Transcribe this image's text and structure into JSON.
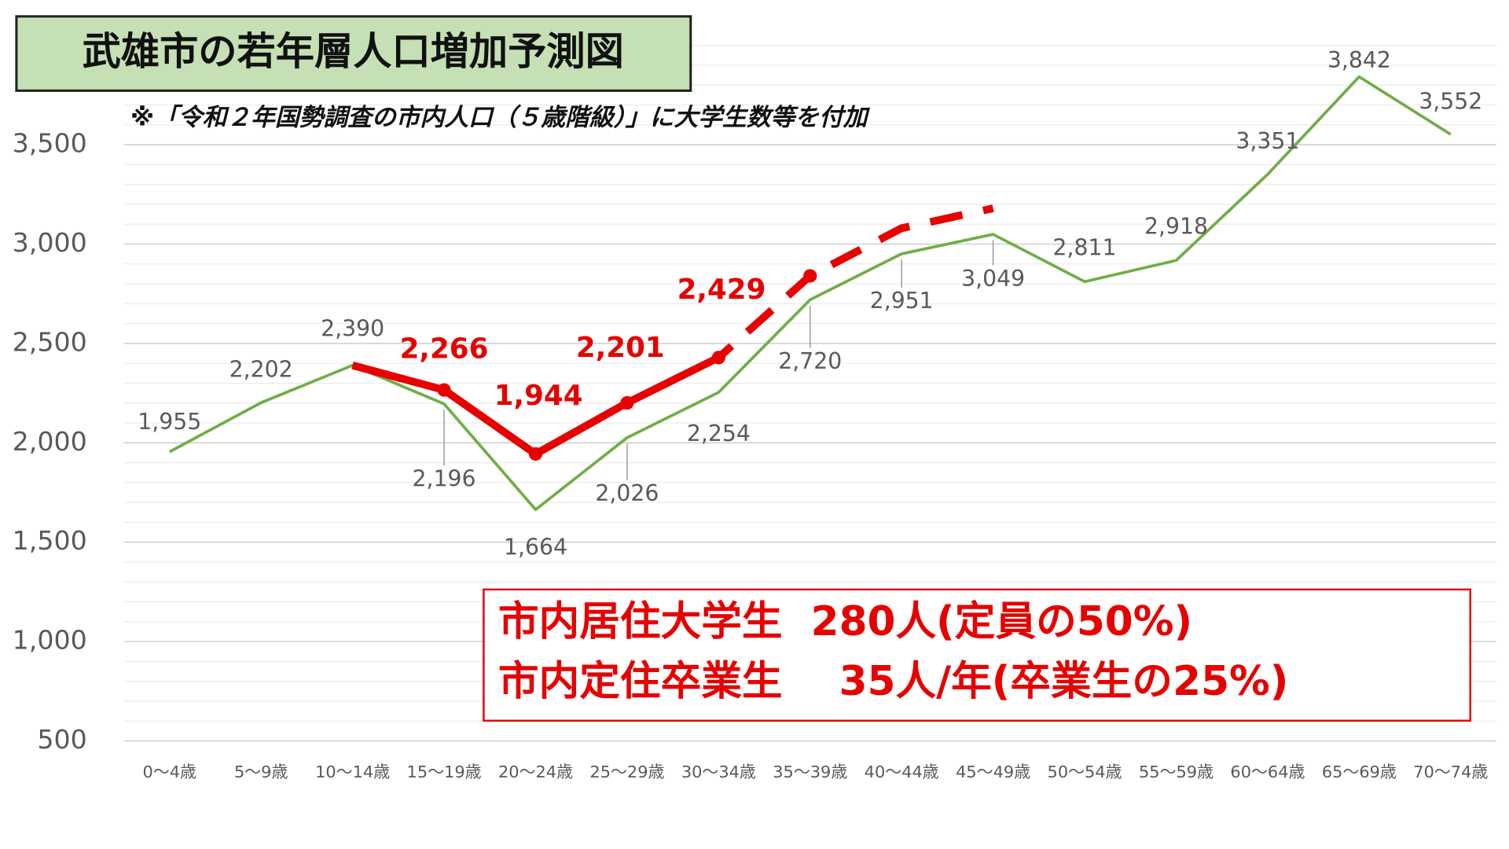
{
  "chart_data": {
    "type": "line",
    "title": "武雄市の若年層人口増加予測図",
    "subtitle": "※「令和２年国勢調査の市内人口（５歳階級）」に大学生数等を付加",
    "annotations": [
      "市内居住大学生  280人(定員の50%)",
      "市内定住卒業生    35人/年(卒業生の25%)"
    ],
    "categories": [
      "0～4歳",
      "5～9歳",
      "10～14歳",
      "15～19歳",
      "20～24歳",
      "25～29歳",
      "30～34歳",
      "35～39歳",
      "40～44歳",
      "45～49歳",
      "50～54歳",
      "55～59歳",
      "60～64歳",
      "65～69歳",
      "70～74歳"
    ],
    "series": [
      {
        "color": "#70ad47",
        "style": "solid",
        "values": [
          1955,
          2202,
          2390,
          2196,
          1664,
          2026,
          2254,
          2720,
          2951,
          3049,
          2811,
          2918,
          3351,
          3842,
          3552
        ],
        "value_labels": [
          "1,955",
          "2,202",
          "2,390",
          "2,196",
          "1,664",
          "2,026",
          "2,254",
          "2,720",
          "2,951",
          "3,049",
          "2,811",
          "2,918",
          "3,351",
          "3,842",
          "3,552"
        ]
      },
      {
        "color": "#e60000",
        "style": "solid",
        "values": [
          null,
          null,
          2390,
          2266,
          1944,
          2201,
          2429,
          null,
          null,
          null,
          null,
          null,
          null,
          null,
          null
        ],
        "value_labels": [
          null,
          null,
          null,
          "2,266",
          "1,944",
          "2,201",
          "2,429",
          null,
          null,
          null,
          null,
          null,
          null,
          null,
          null
        ]
      },
      {
        "color": "#e60000",
        "style": "dashed",
        "values": [
          null,
          null,
          null,
          null,
          null,
          null,
          2429,
          2840,
          3080,
          3180,
          null,
          null,
          null,
          null,
          null
        ]
      }
    ],
    "ylim": [
      500,
      4000
    ],
    "yticks": [
      500,
      {
        "value": 1000,
        "label": "1,000"
      },
      {
        "value": 1500,
        "label": "1,500"
      },
      {
        "value": 2000,
        "label": "2,000"
      },
      {
        "value": 2500,
        "label": "2,500"
      },
      {
        "value": 3000,
        "label": "3,000"
      },
      {
        "value": 3500,
        "label": "3,500"
      }
    ],
    "minor_grid_step": 100,
    "grid": true
  }
}
